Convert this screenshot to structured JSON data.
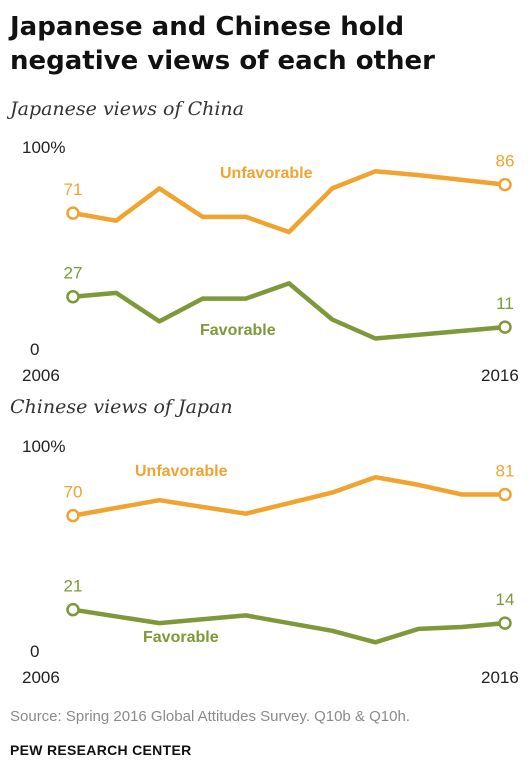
{
  "title": "Japanese and Chinese hold negative views of each other",
  "source": "Source: Spring 2016 Global Attitudes Survey. Q10b & Q10h.",
  "footer": "PEW RESEARCH CENTER",
  "colors": {
    "unfavorable": "#F0A32E",
    "favorable": "#7E983A"
  },
  "chart_data": [
    {
      "type": "line",
      "subtitle": "Japanese views of China",
      "x": [
        2006,
        2007,
        2008,
        2009,
        2010,
        2011,
        2012,
        2013,
        2014,
        2016
      ],
      "ylim": [
        0,
        100
      ],
      "y_ticks": [
        "100%",
        "0"
      ],
      "x_ticks": [
        "2006",
        "2016"
      ],
      "series": [
        {
          "name": "Unfavorable",
          "key": "unfavorable",
          "values": [
            71,
            67,
            84,
            69,
            69,
            61,
            84,
            93,
            91,
            86
          ],
          "first_label": "71",
          "last_label": "86"
        },
        {
          "name": "Favorable",
          "key": "favorable",
          "values": [
            27,
            29,
            14,
            26,
            26,
            34,
            15,
            5,
            7,
            11
          ],
          "first_label": "27",
          "last_label": "11"
        }
      ]
    },
    {
      "type": "line",
      "subtitle": "Chinese views of Japan",
      "x": [
        2006,
        2008,
        2010,
        2012,
        2013,
        2014,
        2015,
        2016
      ],
      "ylim": [
        0,
        100
      ],
      "y_ticks": [
        "100%",
        "0"
      ],
      "x_ticks": [
        "2006",
        "2016"
      ],
      "series": [
        {
          "name": "Unfavorable",
          "key": "unfavorable",
          "values": [
            70,
            78,
            71,
            82,
            90,
            86,
            81,
            81
          ],
          "first_label": "70",
          "last_label": "81"
        },
        {
          "name": "Favorable",
          "key": "favorable",
          "values": [
            21,
            14,
            18,
            10,
            4,
            11,
            12,
            14
          ],
          "first_label": "21",
          "last_label": "14"
        }
      ]
    }
  ]
}
